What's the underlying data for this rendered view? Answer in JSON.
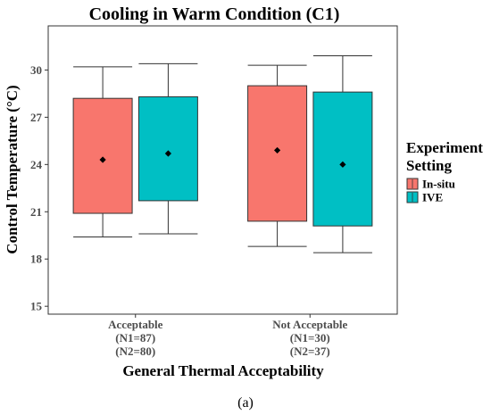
{
  "chart_data": {
    "type": "box",
    "title": "Cooling in Warm Condition (C1)",
    "xlabel": "General Thermal Acceptability",
    "ylabel": "Control Temperature (°C)",
    "ylim": [
      14.5,
      32.8
    ],
    "yticks": [
      15,
      18,
      21,
      24,
      27,
      30
    ],
    "grid": false,
    "legend": {
      "title_lines": [
        "Experiment",
        "Setting"
      ],
      "placement": "right"
    },
    "categories": [
      {
        "lines": [
          "Acceptable",
          "(N1=87)",
          "(N2=80)"
        ]
      },
      {
        "lines": [
          "Not Acceptable",
          "(N1=30)",
          "(N2=37)"
        ]
      }
    ],
    "series": [
      {
        "name": "In-situ",
        "color": "#F8766D",
        "boxes": [
          {
            "whisker_low": 19.4,
            "q1": 20.9,
            "q3": 28.2,
            "whisker_high": 30.2,
            "mean": 24.3
          },
          {
            "whisker_low": 18.8,
            "q1": 20.4,
            "q3": 29.0,
            "whisker_high": 30.3,
            "mean": 24.9
          }
        ]
      },
      {
        "name": "IVE",
        "color": "#00BFC4",
        "boxes": [
          {
            "whisker_low": 19.6,
            "q1": 21.7,
            "q3": 28.3,
            "whisker_high": 30.4,
            "mean": 24.7
          },
          {
            "whisker_low": 18.4,
            "q1": 20.1,
            "q3": 28.6,
            "whisker_high": 30.9,
            "mean": 24.0
          }
        ]
      }
    ],
    "caption": "(a)"
  }
}
